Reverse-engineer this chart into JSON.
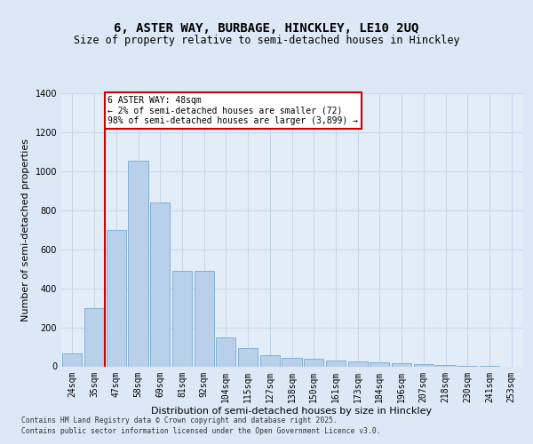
{
  "title1": "6, ASTER WAY, BURBAGE, HINCKLEY, LE10 2UQ",
  "title2": "Size of property relative to semi-detached houses in Hinckley",
  "xlabel": "Distribution of semi-detached houses by size in Hinckley",
  "ylabel": "Number of semi-detached properties",
  "categories": [
    "24sqm",
    "35sqm",
    "47sqm",
    "58sqm",
    "69sqm",
    "81sqm",
    "92sqm",
    "104sqm",
    "115sqm",
    "127sqm",
    "138sqm",
    "150sqm",
    "161sqm",
    "173sqm",
    "184sqm",
    "196sqm",
    "207sqm",
    "218sqm",
    "230sqm",
    "241sqm",
    "253sqm"
  ],
  "values": [
    65,
    300,
    700,
    1055,
    840,
    490,
    490,
    150,
    95,
    55,
    45,
    40,
    30,
    25,
    20,
    18,
    10,
    5,
    2,
    1,
    0
  ],
  "bar_color": "#b8d0ea",
  "bar_edge_color": "#7aaacf",
  "vline_color": "#cc0000",
  "annotation_line1": "6 ASTER WAY: 48sqm",
  "annotation_line2": "← 2% of semi-detached houses are smaller (72)",
  "annotation_line3": "98% of semi-detached houses are larger (3,899) →",
  "annotation_box_color": "#cc0000",
  "vline_pos": 1.5,
  "ylim": [
    0,
    1400
  ],
  "yticks": [
    0,
    200,
    400,
    600,
    800,
    1000,
    1200,
    1400
  ],
  "grid_color": "#c5d5e8",
  "background_color": "#dce8f5",
  "plot_bg_color": "#e2edf8",
  "footer_line1": "Contains HM Land Registry data © Crown copyright and database right 2025.",
  "footer_line2": "Contains public sector information licensed under the Open Government Licence v3.0.",
  "title1_fontsize": 10,
  "title2_fontsize": 8.5,
  "tick_fontsize": 7,
  "ylabel_fontsize": 8,
  "xlabel_fontsize": 8,
  "annotation_fontsize": 7,
  "footer_fontsize": 5.8
}
